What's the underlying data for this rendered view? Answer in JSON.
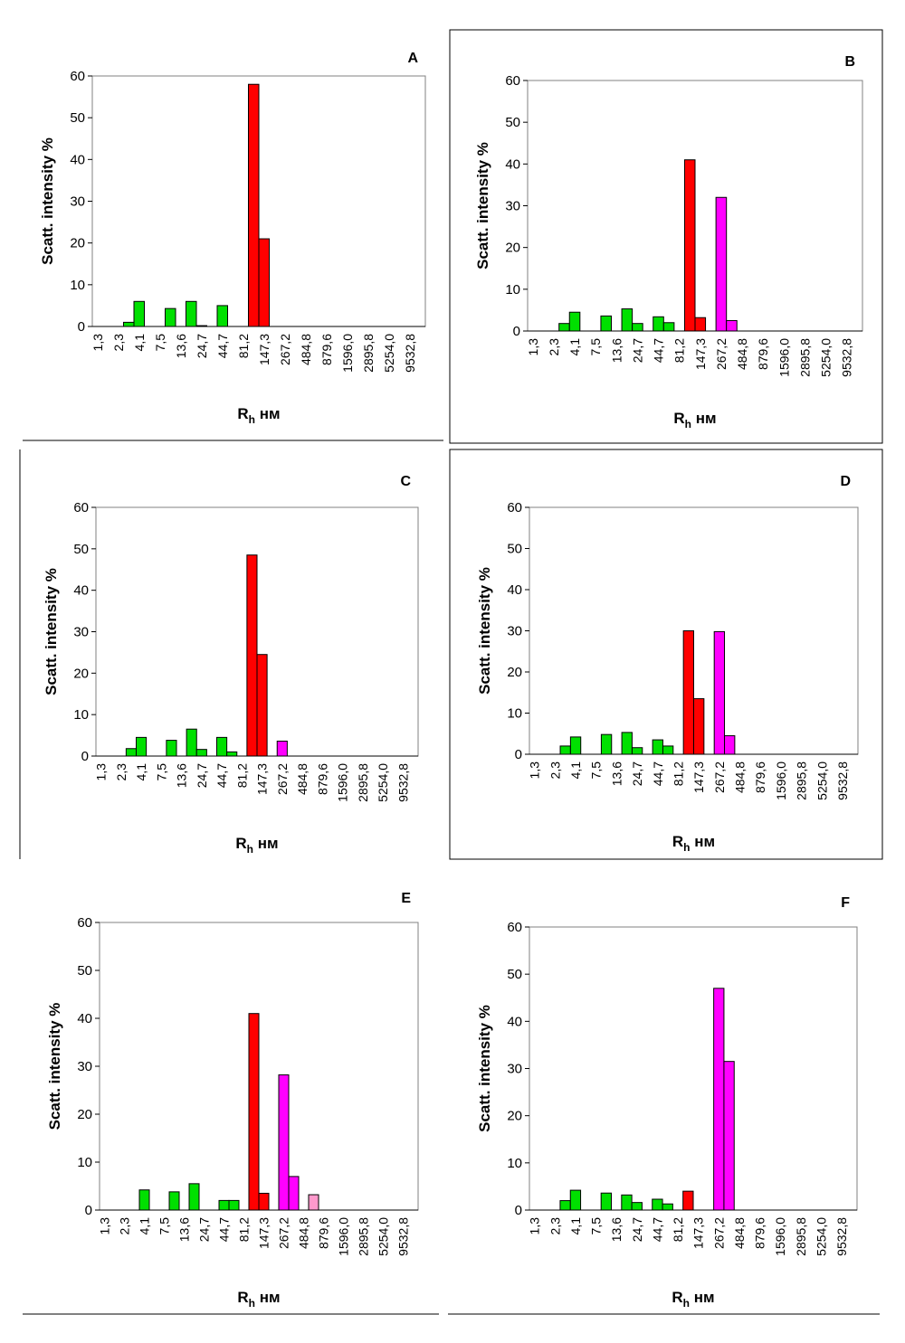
{
  "chart_data": [
    {
      "type": "bar",
      "title": "A",
      "ylabel": "Scatt. intensity %",
      "xlabel": {
        "main": "R",
        "sub": "h",
        "unit": "нм"
      },
      "categories": [
        "1,3",
        null,
        "2,3",
        null,
        "4,1",
        null,
        "7,5",
        null,
        "13,6",
        null,
        "24,7",
        null,
        "44,7",
        null,
        "81,2",
        null,
        "147,3",
        null,
        "267,2",
        null,
        "484,8",
        null,
        "879,6",
        null,
        "1596,0",
        null,
        "2895,8",
        null,
        "5254,0",
        null,
        "9532,8",
        null
      ],
      "values": [
        null,
        null,
        null,
        1,
        6,
        null,
        null,
        4.3,
        null,
        6,
        0.2,
        null,
        5,
        null,
        null,
        58,
        21,
        null,
        null,
        null,
        null,
        null,
        null,
        null,
        null,
        null,
        null,
        null,
        null,
        null,
        null,
        null
      ],
      "colors": [
        null,
        null,
        null,
        "#00e000",
        "#00e000",
        null,
        null,
        "#00e000",
        null,
        "#00e000",
        "#00e000",
        null,
        "#00e000",
        null,
        null,
        "#ff0000",
        "#ff0000",
        null,
        null,
        null,
        null,
        null,
        null,
        null,
        null,
        null,
        null,
        null,
        null,
        null,
        null,
        null
      ],
      "ylim": [
        0,
        60
      ],
      "yticks": [
        0,
        10,
        20,
        30,
        40,
        50,
        60
      ]
    },
    {
      "type": "bar",
      "title": "B",
      "ylabel": "Scatt. intensity %",
      "xlabel": {
        "main": "R",
        "sub": "h",
        "unit": "нм"
      },
      "categories": [
        "1,3",
        null,
        "2,3",
        null,
        "4,1",
        null,
        "7,5",
        null,
        "13,6",
        null,
        "24,7",
        null,
        "44,7",
        null,
        "81,2",
        null,
        "147,3",
        null,
        "267,2",
        null,
        "484,8",
        null,
        "879,6",
        null,
        "1596,0",
        null,
        "2895,8",
        null,
        "5254,0",
        null,
        "9532,8",
        null
      ],
      "values": [
        null,
        null,
        null,
        1.8,
        4.5,
        null,
        null,
        3.6,
        null,
        5.3,
        1.8,
        null,
        3.4,
        2,
        null,
        41,
        3.2,
        null,
        32,
        2.5,
        null,
        null,
        null,
        null,
        null,
        null,
        null,
        null,
        null,
        null,
        null,
        null
      ],
      "colors": [
        null,
        null,
        null,
        "#00e000",
        "#00e000",
        null,
        null,
        "#00e000",
        null,
        "#00e000",
        "#00e000",
        null,
        "#00e000",
        "#00e000",
        null,
        "#ff0000",
        "#ff0000",
        null,
        "#ff00ff",
        "#ff00ff",
        null,
        null,
        null,
        null,
        null,
        null,
        null,
        null,
        null,
        null,
        null,
        null
      ],
      "ylim": [
        0,
        60
      ],
      "yticks": [
        0,
        10,
        20,
        30,
        40,
        50,
        60
      ]
    },
    {
      "type": "bar",
      "title": "C",
      "ylabel": "Scatt. intensity %",
      "xlabel": {
        "main": "R",
        "sub": "h",
        "unit": "нм"
      },
      "categories": [
        "1,3",
        null,
        "2,3",
        null,
        "4,1",
        null,
        "7,5",
        null,
        "13,6",
        null,
        "24,7",
        null,
        "44,7",
        null,
        "81,2",
        null,
        "147,3",
        null,
        "267,2",
        null,
        "484,8",
        null,
        "879,6",
        null,
        "1596,0",
        null,
        "2895,8",
        null,
        "5254,0",
        null,
        "9532,8",
        null
      ],
      "values": [
        null,
        null,
        null,
        1.8,
        4.5,
        null,
        null,
        3.8,
        null,
        6.5,
        1.6,
        null,
        4.5,
        1,
        null,
        48.5,
        24.5,
        null,
        3.6,
        null,
        null,
        null,
        null,
        null,
        null,
        null,
        null,
        null,
        null,
        null,
        null,
        null
      ],
      "colors": [
        null,
        null,
        null,
        "#00e000",
        "#00e000",
        null,
        null,
        "#00e000",
        null,
        "#00e000",
        "#00e000",
        null,
        "#00e000",
        "#00e000",
        null,
        "#ff0000",
        "#ff0000",
        null,
        "#ff00ff",
        null,
        null,
        null,
        null,
        null,
        null,
        null,
        null,
        null,
        null,
        null,
        null,
        null
      ],
      "ylim": [
        0,
        60
      ],
      "yticks": [
        0,
        10,
        20,
        30,
        40,
        50,
        60
      ]
    },
    {
      "type": "bar",
      "title": "D",
      "ylabel": "Scatt. intensity %",
      "xlabel": {
        "main": "R",
        "sub": "h",
        "unit": "нм"
      },
      "categories": [
        "1,3",
        null,
        "2,3",
        null,
        "4,1",
        null,
        "7,5",
        null,
        "13,6",
        null,
        "24,7",
        null,
        "44,7",
        null,
        "81,2",
        null,
        "147,3",
        null,
        "267,2",
        null,
        "484,8",
        null,
        "879,6",
        null,
        "1596,0",
        null,
        "2895,8",
        null,
        "5254,0",
        null,
        "9532,8",
        null
      ],
      "values": [
        null,
        null,
        null,
        2,
        4.2,
        null,
        null,
        4.8,
        null,
        5.3,
        1.6,
        null,
        3.5,
        2,
        null,
        30,
        13.5,
        null,
        29.8,
        4.5,
        null,
        null,
        null,
        null,
        null,
        null,
        null,
        null,
        null,
        null,
        null,
        null
      ],
      "colors": [
        null,
        null,
        null,
        "#00e000",
        "#00e000",
        null,
        null,
        "#00e000",
        null,
        "#00e000",
        "#00e000",
        null,
        "#00e000",
        "#00e000",
        null,
        "#ff0000",
        "#ff0000",
        null,
        "#ff00ff",
        "#ff00ff",
        null,
        null,
        null,
        null,
        null,
        null,
        null,
        null,
        null,
        null,
        null,
        null
      ],
      "ylim": [
        0,
        60
      ],
      "yticks": [
        0,
        10,
        20,
        30,
        40,
        50,
        60
      ]
    },
    {
      "type": "bar",
      "title": "E",
      "ylabel": "Scatt. intensity %",
      "xlabel": {
        "main": "R",
        "sub": "h",
        "unit": "нм"
      },
      "categories": [
        "1,3",
        null,
        "2,3",
        null,
        "4,1",
        null,
        "7,5",
        null,
        "13,6",
        null,
        "24,7",
        null,
        "44,7",
        null,
        "81,2",
        null,
        "147,3",
        null,
        "267,2",
        null,
        "484,8",
        null,
        "879,6",
        null,
        "1596,0",
        null,
        "2895,8",
        null,
        "5254,0",
        null,
        "9532,8",
        null
      ],
      "values": [
        null,
        null,
        null,
        null,
        4.2,
        null,
        null,
        3.8,
        null,
        5.5,
        null,
        null,
        2,
        2,
        null,
        41,
        3.5,
        null,
        28.2,
        7,
        null,
        3.2,
        null,
        null,
        null,
        null,
        null,
        null,
        null,
        null,
        null,
        null
      ],
      "colors": [
        null,
        null,
        null,
        null,
        "#00e000",
        null,
        null,
        "#00e000",
        null,
        "#00e000",
        null,
        null,
        "#00e000",
        "#00e000",
        null,
        "#ff0000",
        "#ff0000",
        null,
        "#ff00ff",
        "#ff00ff",
        null,
        "#ff99cc",
        null,
        null,
        null,
        null,
        null,
        null,
        null,
        null,
        null,
        null
      ],
      "ylim": [
        0,
        60
      ],
      "yticks": [
        0,
        10,
        20,
        30,
        40,
        50,
        60
      ]
    },
    {
      "type": "bar",
      "title": "F",
      "ylabel": "Scatt. intensity %",
      "xlabel": {
        "main": "R",
        "sub": "h",
        "unit": "нм"
      },
      "categories": [
        "1,3",
        null,
        "2,3",
        null,
        "4,1",
        null,
        "7,5",
        null,
        "13,6",
        null,
        "24,7",
        null,
        "44,7",
        null,
        "81,2",
        null,
        "147,3",
        null,
        "267,2",
        null,
        "484,8",
        null,
        "879,6",
        null,
        "1596,0",
        null,
        "2895,8",
        null,
        "5254,0",
        null,
        "9532,8",
        null
      ],
      "values": [
        null,
        null,
        null,
        2,
        4.2,
        null,
        null,
        3.6,
        null,
        3.2,
        1.6,
        null,
        2.3,
        1.3,
        null,
        4,
        null,
        null,
        47,
        31.5,
        null,
        null,
        null,
        null,
        null,
        null,
        null,
        null,
        null,
        null,
        null,
        null
      ],
      "colors": [
        null,
        null,
        null,
        "#00e000",
        "#00e000",
        null,
        null,
        "#00e000",
        null,
        "#00e000",
        "#00e000",
        null,
        "#00e000",
        "#00e000",
        null,
        "#ff0000",
        null,
        null,
        "#ff00ff",
        "#ff00ff",
        null,
        null,
        null,
        null,
        null,
        null,
        null,
        null,
        null,
        null,
        null,
        null
      ],
      "ylim": [
        0,
        60
      ],
      "yticks": [
        0,
        10,
        20,
        30,
        40,
        50,
        60
      ]
    }
  ]
}
